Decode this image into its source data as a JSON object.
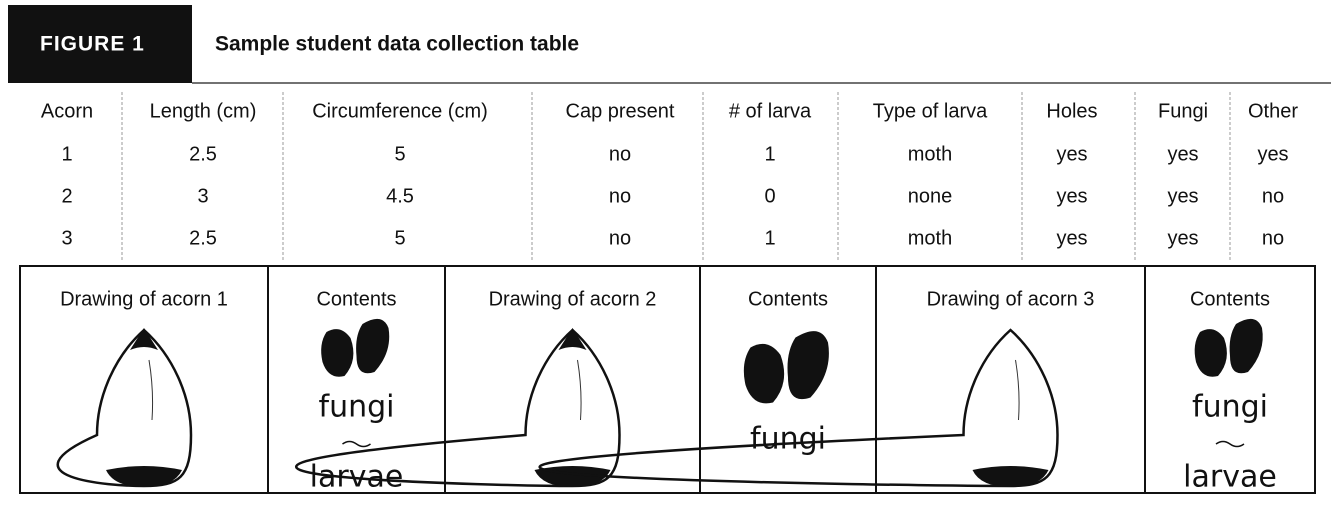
{
  "figure": {
    "label": "FIGURE 1",
    "title": "Sample student data collection table"
  },
  "table": {
    "headers": [
      "Acorn",
      "Length (cm)",
      "Circumference (cm)",
      "Cap present",
      "# of larva",
      "Type of larva",
      "Holes",
      "Fungi",
      "Other"
    ],
    "rows": [
      [
        "1",
        "2.5",
        "5",
        "no",
        "1",
        "moth",
        "yes",
        "yes",
        "yes"
      ],
      [
        "2",
        "3",
        "4.5",
        "no",
        "0",
        "none",
        "yes",
        "yes",
        "no"
      ],
      [
        "3",
        "2.5",
        "5",
        "no",
        "1",
        "moth",
        "yes",
        "yes",
        "no"
      ]
    ]
  },
  "drawings": [
    {
      "label": "Drawing of acorn 1"
    },
    {
      "label": "Contents",
      "notes": [
        "fungi",
        "larvae"
      ]
    },
    {
      "label": "Drawing of acorn 2"
    },
    {
      "label": "Contents",
      "notes": [
        "fungi"
      ]
    },
    {
      "label": "Drawing of acorn 3"
    },
    {
      "label": "Contents",
      "notes": [
        "fungi",
        "larvae"
      ]
    }
  ]
}
